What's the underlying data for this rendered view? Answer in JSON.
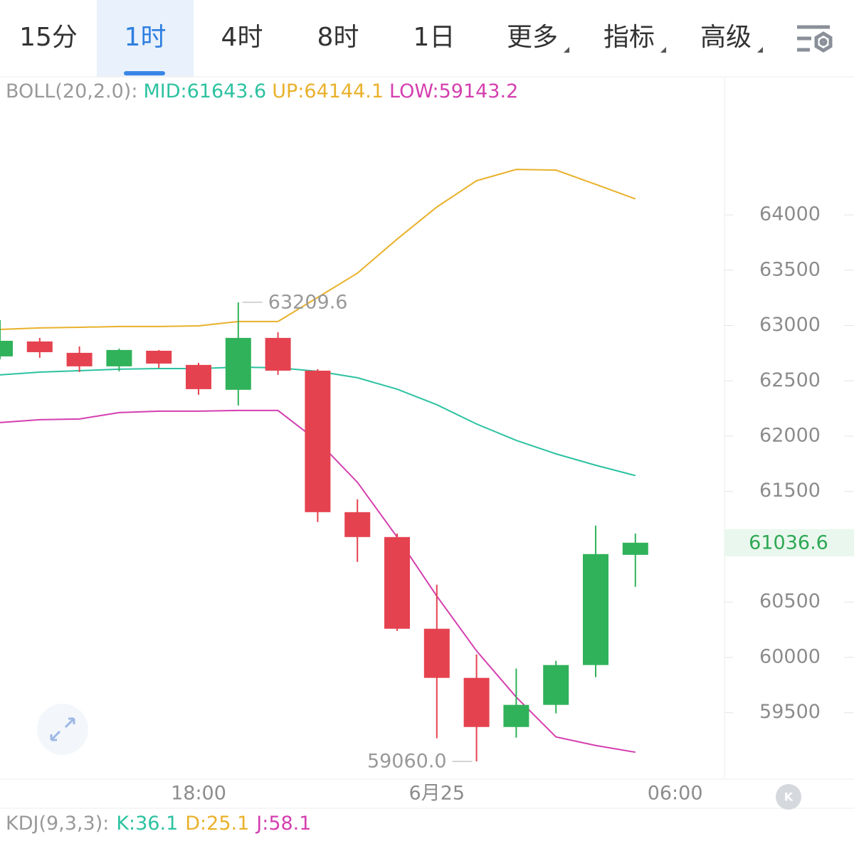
{
  "tabs": [
    "15分",
    "1时",
    "4时",
    "8时",
    "1日",
    "更多",
    "指标",
    "高级"
  ],
  "chart_data": {
    "type": "candlestick",
    "indicator_label": "BOLL(20,2.0):",
    "categories": [
      null,
      null,
      null,
      null,
      null,
      "18:00",
      null,
      null,
      null,
      null,
      null,
      "6月25",
      null,
      null,
      null,
      null,
      null,
      "06:00"
    ],
    "candles": {
      "up_color": "#30b25a",
      "down_color": "#e5424f",
      "open": [
        62721,
        62856,
        62753,
        62631,
        62772,
        62644,
        62419,
        62888,
        62592,
        61313,
        61088,
        60259,
        59815,
        59371,
        59571,
        59931,
        60927,
        null
      ],
      "high": [
        63049,
        62888,
        62811,
        62791,
        62779,
        62663,
        63209.6,
        62939,
        62605,
        61429,
        61120,
        60657,
        60027,
        59899,
        59969,
        61191,
        61120,
        null
      ],
      "low": [
        62695,
        62708,
        62579,
        62586,
        62618,
        62374,
        62277,
        62554,
        61223,
        60863,
        60239,
        59269,
        59060.0,
        59275,
        59494,
        59821,
        60638,
        null
      ],
      "close": [
        62862,
        62759,
        62631,
        62779,
        62656,
        62425,
        62888,
        62592,
        61313,
        61088,
        60259,
        59815,
        59371,
        59571,
        59931,
        60934,
        61036.6,
        null
      ]
    },
    "series": [
      {
        "name": "MID:61643.6",
        "color": "#2cc2a0",
        "values": [
          62554,
          62579,
          62592,
          62605,
          62611,
          62611,
          62624,
          62618,
          62586,
          62528,
          62425,
          62284,
          62110,
          61962,
          61840,
          61737,
          61643.6,
          null
        ]
      },
      {
        "name": "UP:64144.1",
        "color": "#e9b12b",
        "values": [
          62965,
          62978,
          62984,
          62991,
          62991,
          62997,
          63036,
          63036,
          63254,
          63473,
          63781,
          64071,
          64309,
          64411,
          64405,
          64276,
          64144.1,
          null
        ]
      },
      {
        "name": "LOW:59143.2",
        "color": "#d43faf",
        "values": [
          62123,
          62149,
          62155,
          62213,
          62226,
          62226,
          62232,
          62232,
          61956,
          61583,
          61088,
          60554,
          60059,
          59641,
          59281,
          59204,
          59143.2,
          null
        ]
      }
    ],
    "annotations": [
      "63209.6",
      "59060.0"
    ],
    "last_price": "61036.6",
    "ylim": [
      58900,
      65235
    ],
    "yticks": [
      59500,
      60000,
      60500,
      61000,
      61500,
      62000,
      62500,
      63000,
      63500,
      64000
    ],
    "sub_indicator": {
      "label": "KDJ(9,3,3):",
      "items": [
        {
          "text": "K:36.1",
          "color": "#2cc2a0"
        },
        {
          "text": "D:25.1",
          "color": "#e9b12b"
        },
        {
          "text": "J:58.1",
          "color": "#d43faf"
        }
      ]
    }
  }
}
